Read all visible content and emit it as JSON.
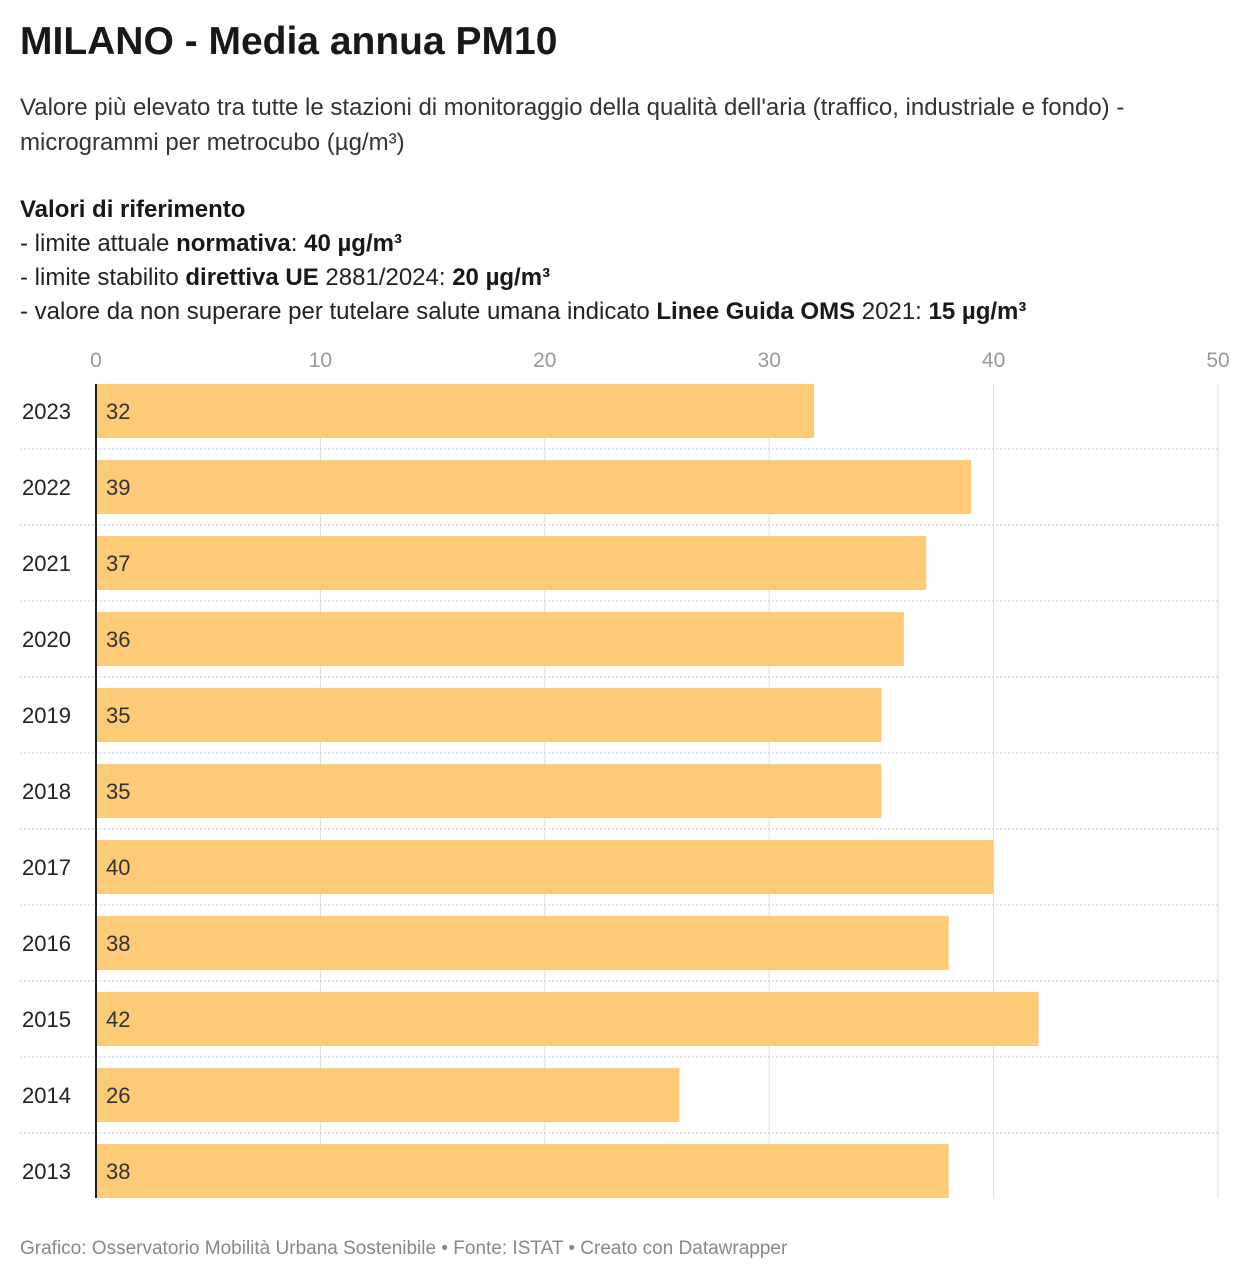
{
  "header": {
    "title": "MILANO - Media annua PM10",
    "subtitle": "Valore più elevato tra tutte le stazioni di monitoraggio della qualità dell'aria (traffico, industriale e fondo) - microgrammi per metrocubo (µg/m³)"
  },
  "references": {
    "heading": "Valori di riferimento",
    "line1": {
      "prefix": "- limite attuale ",
      "bold": "normativa",
      "mid": ": ",
      "value": "40 µg/m³"
    },
    "line2": {
      "prefix": "- limite stabilito ",
      "bold": "direttiva UE",
      "mid": " 2881/2024: ",
      "value": "20 µg/m³"
    },
    "line3": {
      "prefix": "- valore da non superare per tutelare salute umana indicato ",
      "bold": "Linee Guida OMS",
      "mid": " 2021: ",
      "value": "15 µg/m³"
    }
  },
  "footer": "Grafico: Osservatorio Mobilità Urbana Sostenibile • Fonte: ISTAT • Creato con Datawrapper",
  "colors": {
    "bar": "#fdca78",
    "grid": "#dddddd",
    "axis": "#222222",
    "tick": "#999999"
  },
  "chart_data": {
    "type": "bar",
    "orientation": "horizontal",
    "categories": [
      "2023",
      "2022",
      "2021",
      "2020",
      "2019",
      "2018",
      "2017",
      "2016",
      "2015",
      "2014",
      "2013"
    ],
    "values": [
      32,
      39,
      37,
      36,
      35,
      35,
      40,
      38,
      42,
      26,
      38
    ],
    "xlim": [
      0,
      50
    ],
    "xticks": [
      0,
      10,
      20,
      30,
      40,
      50
    ],
    "grid": true
  }
}
